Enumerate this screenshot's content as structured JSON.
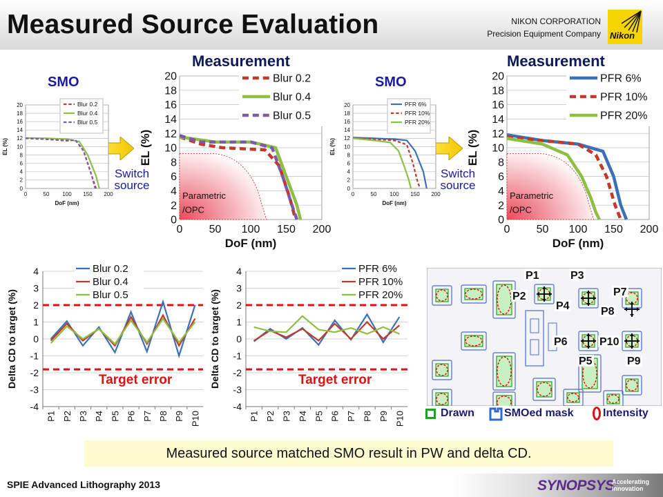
{
  "header": {
    "title": "Measured Source Evaluation",
    "company_line1": "NIKON CORPORATION",
    "company_line2": "Precision Equipment Company",
    "logo_text": "Nikon",
    "logo_color": "#f5d400"
  },
  "labels": {
    "measurement": "Measurement",
    "smo": "SMO",
    "switch_line1": "Switch",
    "switch_line2": "source",
    "parametric_line1": "Parametric",
    "parametric_line2": "/OPC",
    "target_error": "Target error",
    "legend_drawn": "Drawn",
    "legend_smo_mask": "SMOed mask",
    "legend_intensity": "Intensity"
  },
  "footer": {
    "summary": "Measured source matched SMO result in PW and delta CD.",
    "conference": "SPIE Advanced Lithography 2013",
    "brand": "SYNOPSYS",
    "brand_mark": "®",
    "tagline1": "Accelerating",
    "tagline2": "Innovation"
  },
  "colors": {
    "blur02": "#c0392b",
    "blur04": "#8dbf44",
    "blur05": "#7b5aa6",
    "pfr6": "#3a70b8",
    "pfr10": "#c0392b",
    "pfr20": "#8dbf44",
    "lineBlue": "#3a70b8",
    "lineRed": "#c0392b",
    "lineGreen": "#8dbf44",
    "target": "#e01010",
    "title_color": "#0d1a55"
  },
  "chart_data": [
    {
      "id": "smo_blur",
      "type": "line",
      "xlabel": "DoF (nm)",
      "ylabel": "EL (%)",
      "xlim": [
        0,
        200
      ],
      "ylim": [
        0,
        20
      ],
      "xticks": [
        0,
        50,
        100,
        150,
        200
      ],
      "yticks": [
        0,
        2,
        4,
        6,
        8,
        10,
        12,
        14,
        16,
        18,
        20
      ],
      "legend": "top-right",
      "series": [
        {
          "name": "Blur 0.2",
          "style": "dash",
          "color": "#c0392b",
          "x": [
            0,
            50,
            100,
            120,
            140,
            160,
            170
          ],
          "y": [
            12,
            11.8,
            11.4,
            11.6,
            9,
            3,
            0
          ]
        },
        {
          "name": "Blur 0.4",
          "style": "solid",
          "color": "#8dbf44",
          "x": [
            0,
            50,
            100,
            130,
            150,
            170,
            178
          ],
          "y": [
            12.1,
            12,
            11.8,
            11.2,
            8,
            3,
            0
          ]
        },
        {
          "name": "Blur 0.5",
          "style": "dash",
          "color": "#7b5aa6",
          "x": [
            0,
            50,
            100,
            120,
            140,
            160,
            168
          ],
          "y": [
            12,
            11.8,
            11.5,
            11.6,
            9,
            3,
            0
          ]
        }
      ]
    },
    {
      "id": "meas_blur",
      "type": "line",
      "xlabel": "DoF (nm)",
      "ylabel": "EL (%)",
      "xlim": [
        0,
        200
      ],
      "ylim": [
        0,
        20
      ],
      "xticks": [
        0,
        50,
        100,
        150,
        200
      ],
      "yticks": [
        0,
        2,
        4,
        6,
        8,
        10,
        12,
        14,
        16,
        18,
        20
      ],
      "legend": "top-right",
      "series": [
        {
          "name": "Blur 0.2",
          "style": "dash",
          "color": "#c0392b",
          "x": [
            0,
            30,
            60,
            100,
            120,
            140,
            155,
            163
          ],
          "y": [
            11.5,
            10.5,
            10,
            9.8,
            9.7,
            7.5,
            3,
            0
          ]
        },
        {
          "name": "Blur 0.4",
          "style": "solid",
          "color": "#8dbf44",
          "x": [
            0,
            50,
            100,
            135,
            150,
            165,
            170
          ],
          "y": [
            11.5,
            10.8,
            10.8,
            10,
            6,
            2,
            0
          ]
        },
        {
          "name": "Blur 0.5",
          "style": "dash",
          "color": "#7b5aa6",
          "x": [
            0,
            30,
            60,
            100,
            130,
            145,
            158,
            165
          ],
          "y": [
            11.7,
            10.8,
            10.8,
            10.8,
            10,
            6,
            2,
            0
          ]
        }
      ]
    },
    {
      "id": "smo_pfr",
      "type": "line",
      "xlabel": "DoF (nm)",
      "ylabel": "EL (%)",
      "xlim": [
        0,
        200
      ],
      "ylim": [
        0,
        20
      ],
      "xticks": [
        0,
        50,
        100,
        150,
        200
      ],
      "yticks": [
        0,
        2,
        4,
        6,
        8,
        10,
        12,
        14,
        16,
        18,
        20
      ],
      "legend": "top-right",
      "series": [
        {
          "name": "PFR 6%",
          "style": "solid",
          "color": "#3a70b8",
          "x": [
            0,
            50,
            100,
            130,
            150,
            170,
            178
          ],
          "y": [
            12.2,
            12,
            11.8,
            11.5,
            9,
            4,
            0
          ]
        },
        {
          "name": "PFR 10%",
          "style": "dash",
          "color": "#c0392b",
          "x": [
            0,
            50,
            100,
            130,
            145,
            155,
            162
          ],
          "y": [
            12,
            11.8,
            11.5,
            10.5,
            6,
            2,
            0
          ]
        },
        {
          "name": "PFR 20%",
          "style": "solid",
          "color": "#8dbf44",
          "x": [
            0,
            50,
            90,
            110,
            125,
            135,
            140
          ],
          "y": [
            12,
            11.5,
            11,
            9,
            5,
            2,
            0
          ]
        }
      ]
    },
    {
      "id": "meas_pfr",
      "type": "line",
      "xlabel": "DoF (nm)",
      "ylabel": "EL (%)",
      "xlim": [
        0,
        200
      ],
      "ylim": [
        0,
        20
      ],
      "xticks": [
        0,
        50,
        100,
        150,
        200
      ],
      "yticks": [
        0,
        2,
        4,
        6,
        8,
        10,
        12,
        14,
        16,
        18,
        20
      ],
      "legend": "top-right",
      "series": [
        {
          "name": "PFR 6%",
          "style": "solid",
          "color": "#3a70b8",
          "x": [
            0,
            50,
            100,
            135,
            150,
            160,
            168
          ],
          "y": [
            11.8,
            11,
            10.5,
            9.5,
            6,
            2,
            0
          ]
        },
        {
          "name": "PFR 10%",
          "style": "dash",
          "color": "#c0392b",
          "x": [
            0,
            50,
            100,
            125,
            140,
            152,
            160
          ],
          "y": [
            11.5,
            11,
            10.5,
            9,
            6,
            2,
            0
          ]
        },
        {
          "name": "PFR 20%",
          "style": "solid",
          "color": "#8dbf44",
          "x": [
            0,
            50,
            85,
            105,
            118,
            125,
            130
          ],
          "y": [
            11.3,
            10.5,
            9,
            6,
            3,
            1,
            0
          ]
        }
      ]
    },
    {
      "id": "delta_blur",
      "type": "line",
      "ylabel": "Delta CD to target (%)",
      "ylim": [
        -4,
        4
      ],
      "yticks": [
        -4,
        -3,
        -2,
        -1,
        0,
        1,
        2,
        3,
        4
      ],
      "categories": [
        "P1",
        "P2",
        "P3",
        "P4",
        "P5",
        "P6",
        "P7",
        "P8",
        "P9",
        "P10"
      ],
      "legend": "top-left",
      "target_lines": [
        2,
        -1.8
      ],
      "series": [
        {
          "name": "Blur 0.2",
          "color": "#3a70b8",
          "values": [
            0,
            1.05,
            -0.4,
            0.7,
            -0.8,
            1.6,
            -0.75,
            2.2,
            -1,
            2
          ]
        },
        {
          "name": "Blur 0.4",
          "color": "#c0392b",
          "values": [
            -0.1,
            0.9,
            -0.1,
            0.6,
            -0.4,
            1.3,
            -0.3,
            1.4,
            -0.4,
            1.2
          ]
        },
        {
          "name": "Blur 0.5",
          "color": "#8dbf44",
          "values": [
            -0.25,
            0.75,
            0,
            0.6,
            -0.3,
            1.1,
            -0.2,
            1.2,
            -0.2,
            1
          ]
        }
      ]
    },
    {
      "id": "delta_pfr",
      "type": "line",
      "ylabel": "Delta CD to target (%)",
      "ylim": [
        -4,
        4
      ],
      "yticks": [
        -4,
        -3,
        -2,
        -1,
        0,
        1,
        2,
        3,
        4
      ],
      "categories": [
        "P1",
        "P2",
        "P3",
        "P4",
        "P5",
        "P6",
        "P7",
        "P8",
        "P9",
        "P10"
      ],
      "legend": "top-left",
      "target_lines": [
        2,
        -1.8
      ],
      "series": [
        {
          "name": "PFR 6%",
          "color": "#3a70b8",
          "values": [
            -0.15,
            0.6,
            0,
            0.65,
            -0.35,
            1.1,
            -0.05,
            1.45,
            -0.2,
            1.3
          ]
        },
        {
          "name": "PFR 10%",
          "color": "#c0392b",
          "values": [
            -0.1,
            0.5,
            0.1,
            0.6,
            -0.1,
            0.9,
            0,
            1,
            0,
            0.8
          ]
        },
        {
          "name": "PFR 20%",
          "color": "#8dbf44",
          "values": [
            0.7,
            0.45,
            0.4,
            1.35,
            0.55,
            0.4,
            0.65,
            0.3,
            0.7,
            0.3
          ]
        }
      ]
    }
  ],
  "layout_points": [
    "P1",
    "P2",
    "P3",
    "P4",
    "P5",
    "P6",
    "P7",
    "P8",
    "P9",
    "P10"
  ]
}
